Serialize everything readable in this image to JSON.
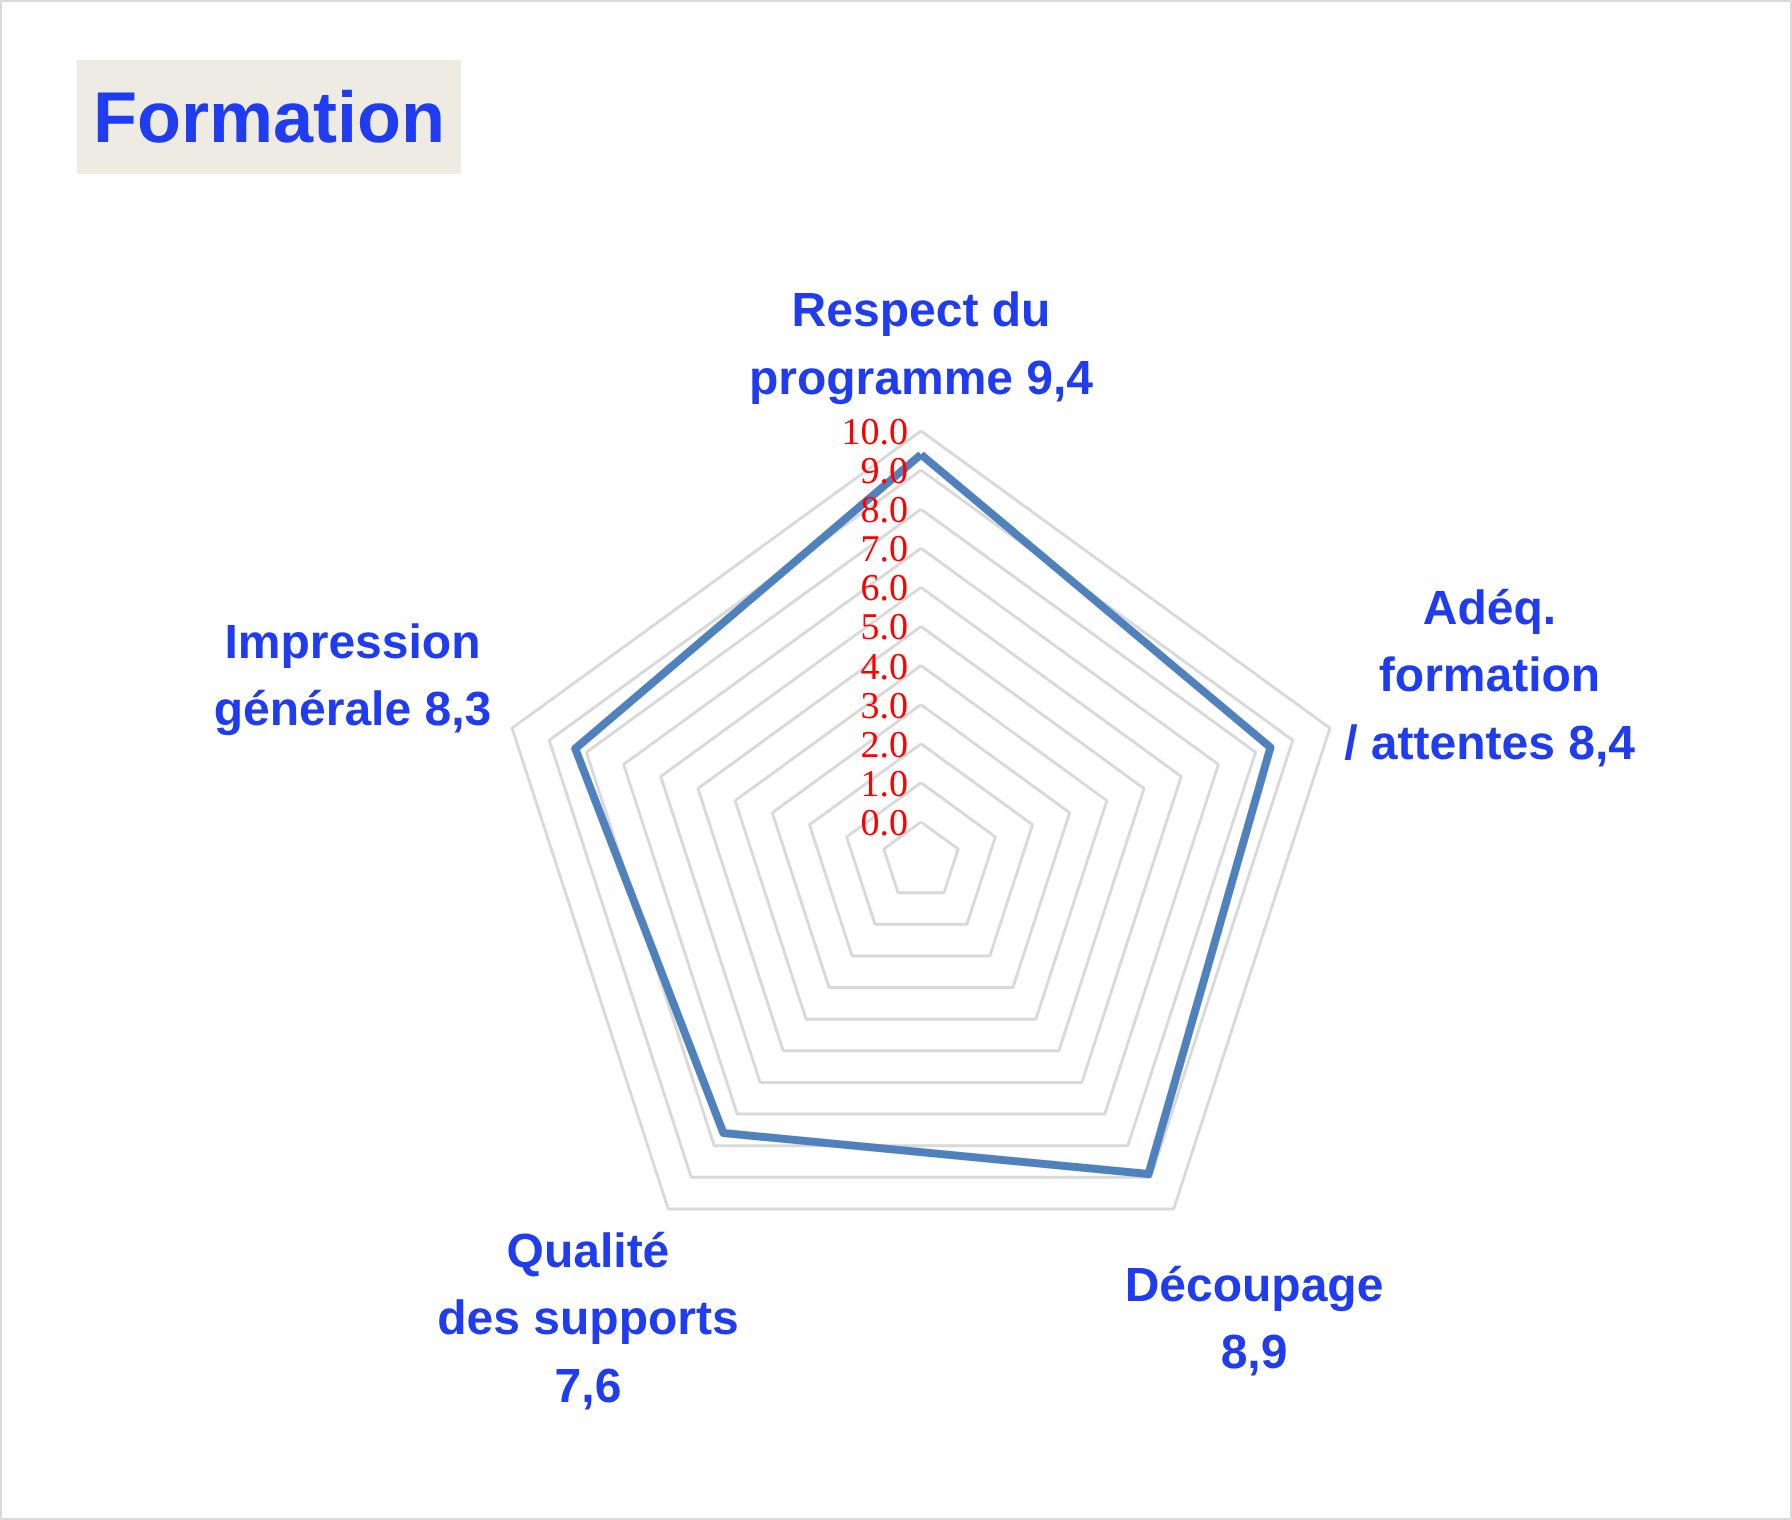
{
  "chart_data": {
    "type": "radar",
    "title": "Formation",
    "categories": [
      "Respect du\nprogramme 9,4",
      "Adéq.\nformation\n/ attentes 8,4",
      "Découpage\n8,9",
      "Qualité\ndes supports\n7,6",
      "Impression\ngénérale 8,3"
    ],
    "series": [
      {
        "color": "#4f81bd",
        "values": [
          9.4,
          8.4,
          8.9,
          7.6,
          8.3
        ]
      }
    ],
    "ylim": [
      -1,
      10
    ],
    "yticks": [
      {
        "value": 0,
        "label": "0.0"
      },
      {
        "value": 1,
        "label": "1.0"
      },
      {
        "value": 2,
        "label": "2.0"
      },
      {
        "value": 3,
        "label": "3.0"
      },
      {
        "value": 4,
        "label": "4.0"
      },
      {
        "value": 5,
        "label": "5.0"
      },
      {
        "value": 6,
        "label": "6.0"
      },
      {
        "value": 7,
        "label": "7.0"
      },
      {
        "value": 8,
        "label": "8.0"
      },
      {
        "value": 9,
        "label": "9.0"
      },
      {
        "value": 10,
        "label": "10.0"
      }
    ],
    "grid": true
  }
}
